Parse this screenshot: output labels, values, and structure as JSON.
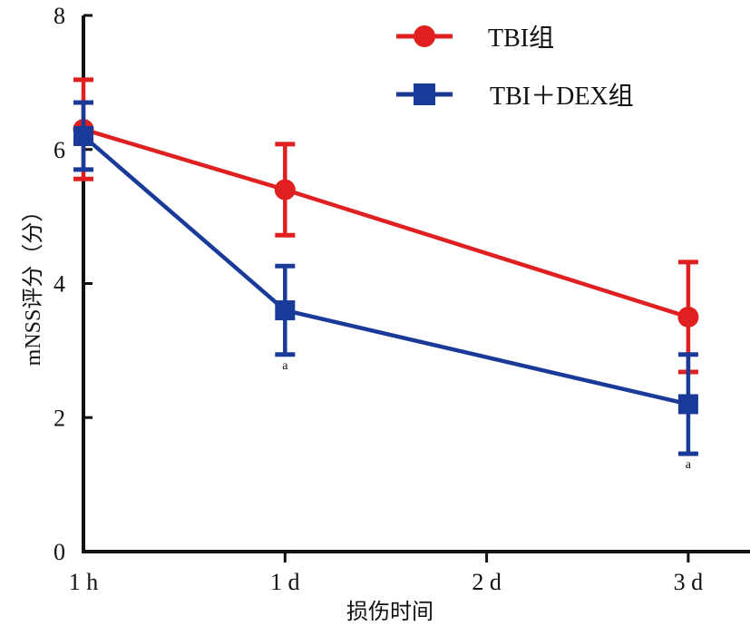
{
  "chart_data": {
    "type": "line",
    "title": "",
    "xlabel": "损伤时间",
    "ylabel": "mNSS评分（分）",
    "categories": [
      "1 h",
      "1 d",
      "2 d",
      "3 d"
    ],
    "ylim": [
      0,
      8
    ],
    "yticks": [
      0,
      2,
      4,
      6,
      8
    ],
    "grid": false,
    "legend_position": "top-right",
    "series": [
      {
        "name": "TBI组",
        "color": "#e02020",
        "marker": "circle",
        "x": [
          "1 h",
          "1 d",
          "3 d"
        ],
        "values": [
          6.3,
          5.4,
          3.5
        ],
        "error": [
          0.74,
          0.68,
          0.82
        ],
        "annotations": [
          "",
          "",
          ""
        ]
      },
      {
        "name": "TBI＋DEX组",
        "color": "#1a3a9a",
        "marker": "square",
        "x": [
          "1 h",
          "1 d",
          "3 d"
        ],
        "values": [
          6.2,
          3.6,
          2.2
        ],
        "error": [
          0.5,
          0.66,
          0.74
        ],
        "annotations": [
          "",
          "a",
          "a"
        ]
      }
    ]
  }
}
